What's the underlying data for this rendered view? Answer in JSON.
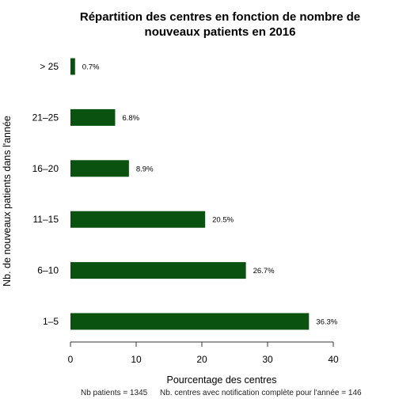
{
  "chart_data": {
    "type": "bar",
    "orientation": "horizontal",
    "title": "Répartition des centres en fonction de nombre de nouveaux patients en 2016",
    "title_lines": [
      "Répartition des centres en fonction de nombre de",
      "nouveaux patients en 2016"
    ],
    "xlabel": "Pourcentage des centres",
    "ylabel": "Nb. de nouveaux patients dans l'année",
    "categories": [
      "> 25",
      "21–25",
      "16–20",
      "11–15",
      "6–10",
      "1–5"
    ],
    "values": [
      0.7,
      6.8,
      8.9,
      20.5,
      26.7,
      36.3
    ],
    "data_labels": [
      "0.7%",
      "6.8%",
      "8.9%",
      "20.5%",
      "26.7%",
      "36.3%"
    ],
    "xlim": [
      0,
      40
    ],
    "xticks": [
      0,
      10,
      20,
      30,
      40
    ],
    "grid": false,
    "bar_color": "#0a5210"
  },
  "footer": {
    "nb_patients": "Nb patients =  1345",
    "nb_centres": "Nb. centres avec notification complète pour l'année =  146"
  }
}
